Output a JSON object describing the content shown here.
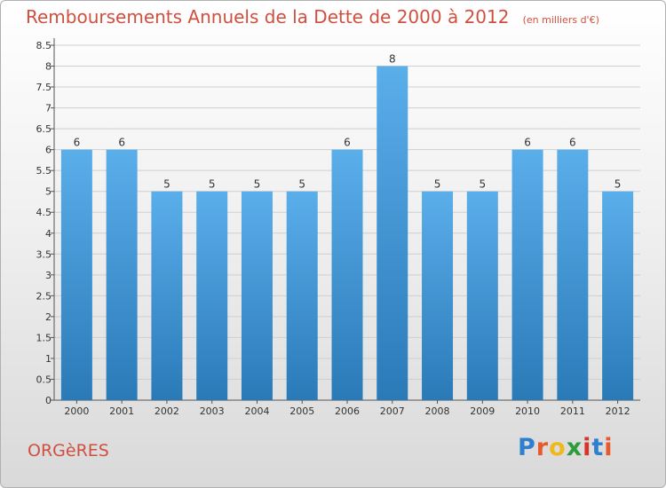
{
  "title": "Remboursements Annuels de la Dette de 2000 à 2012",
  "subtitle": "(en milliers d'€)",
  "commune": "ORGèRES",
  "brand": {
    "letters": [
      "P",
      "r",
      "o",
      "x",
      "i",
      "t",
      "i"
    ],
    "colors": [
      "#2e7fd0",
      "#e85a2a",
      "#f0b81c",
      "#2e9c3a",
      "#d8352a",
      "#2e7fd0",
      "#e85a2a"
    ]
  },
  "colors": {
    "bar_light": "#5aaeea",
    "bar_dark": "#2a7ab8",
    "title": "#d0503f",
    "grid": "#cfcfcf"
  },
  "chart_data": {
    "type": "bar",
    "categories": [
      "2000",
      "2001",
      "2002",
      "2003",
      "2004",
      "2005",
      "2006",
      "2007",
      "2008",
      "2009",
      "2010",
      "2011",
      "2012"
    ],
    "values": [
      6,
      6,
      5,
      5,
      5,
      5,
      6,
      8,
      5,
      5,
      6,
      6,
      5
    ],
    "data_labels": [
      "6",
      "6",
      "5",
      "5",
      "5",
      "5",
      "6",
      "8",
      "5",
      "5",
      "6",
      "6",
      "5"
    ],
    "y_ticks": [
      "0",
      "0.5",
      "1",
      "1.5",
      "2",
      "2.5",
      "3",
      "3.5",
      "4",
      "4.5",
      "5",
      "5.5",
      "6",
      "6.5",
      "7",
      "7.5",
      "8",
      "8.5"
    ],
    "ylim": [
      0,
      8.5
    ],
    "grid": true,
    "title": "Remboursements Annuels de la Dette de 2000 à 2012",
    "xlabel": "",
    "ylabel": ""
  }
}
